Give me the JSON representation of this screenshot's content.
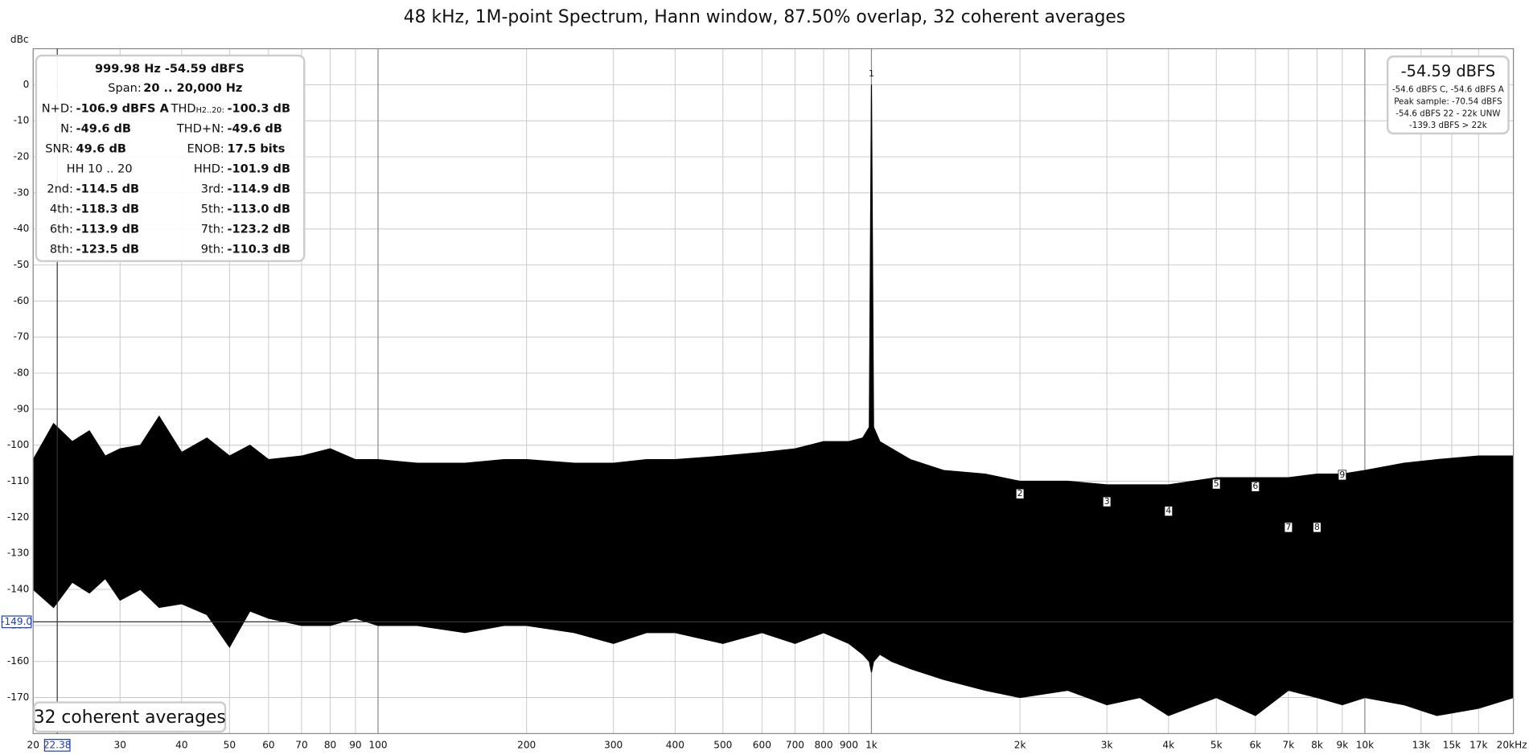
{
  "chart_data": {
    "type": "band",
    "title": "48 kHz, 1M-point Spectrum, Hann window, 87.50% overlap, 32 coherent averages",
    "y_unit": "dBc",
    "log_x": true,
    "grid": true,
    "xlim": [
      20,
      20000
    ],
    "ylim": [
      -180,
      10
    ],
    "xticks": [
      20,
      30,
      40,
      50,
      60,
      70,
      80,
      90,
      100,
      200,
      300,
      400,
      500,
      600,
      700,
      800,
      900,
      {
        "value": 1000,
        "label": "1k"
      },
      {
        "value": 2000,
        "label": "2k"
      },
      {
        "value": 3000,
        "label": "3k"
      },
      {
        "value": 4000,
        "label": "4k"
      },
      {
        "value": 5000,
        "label": "5k"
      },
      {
        "value": 6000,
        "label": "6k"
      },
      {
        "value": 7000,
        "label": "7k"
      },
      {
        "value": 8000,
        "label": "8k"
      },
      {
        "value": 9000,
        "label": "9k"
      },
      {
        "value": 10000,
        "label": "10k"
      },
      {
        "value": 13000,
        "label": "13k"
      },
      {
        "value": 15000,
        "label": "15k"
      },
      {
        "value": 17000,
        "label": "17k"
      },
      {
        "value": 20000,
        "label": "20kHz"
      }
    ],
    "yticks": [
      0,
      -10,
      -20,
      -30,
      -40,
      -50,
      -60,
      -70,
      -80,
      -90,
      -100,
      -110,
      -120,
      -130,
      -140,
      -150,
      -160,
      -170
    ],
    "x": [
      20,
      22,
      24,
      26,
      28,
      30,
      33,
      36,
      40,
      45,
      50,
      55,
      60,
      70,
      80,
      90,
      100,
      120,
      150,
      180,
      200,
      250,
      300,
      350,
      400,
      500,
      600,
      700,
      800,
      900,
      960,
      990,
      1000,
      1010,
      1040,
      1100,
      1200,
      1400,
      1700,
      2000,
      2500,
      3000,
      3500,
      4000,
      5000,
      6000,
      7000,
      8000,
      9000,
      10000,
      12000,
      14000,
      17000,
      20000
    ],
    "series": [
      {
        "color": "#000000",
        "values": [
          -104,
          -94,
          -99,
          -96,
          -103,
          -101,
          -100,
          -92,
          -102,
          -98,
          -103,
          -100,
          -104,
          -103,
          -101,
          -104,
          -104,
          -105,
          -105,
          -104,
          -104,
          -105,
          -105,
          -104,
          -104,
          -103,
          -102,
          -101,
          -99,
          -99,
          -98,
          -95,
          0,
          -95,
          -99,
          -101,
          -104,
          -107,
          -108,
          -110,
          -110,
          -111,
          -111,
          -111,
          -109,
          -109,
          -109,
          -108,
          -108,
          -107,
          -105,
          -104,
          -103,
          -103
        ]
      },
      {
        "color": "#000000",
        "values": [
          -140,
          -145,
          -138,
          -141,
          -137,
          -143,
          -140,
          -145,
          -144,
          -147,
          -156,
          -146,
          -148,
          -150,
          -150,
          -148,
          -150,
          -150,
          -152,
          -150,
          -150,
          -152,
          -155,
          -152,
          -152,
          -155,
          -152,
          -155,
          -152,
          -155,
          -158,
          -160,
          -163,
          -160,
          -158,
          -160,
          -162,
          -165,
          -168,
          -170,
          -168,
          -172,
          -170,
          -175,
          -170,
          -175,
          -168,
          -170,
          -172,
          -170,
          -172,
          -175,
          -173,
          -170
        ]
      }
    ],
    "markers": [
      {
        "label": "1",
        "x": 1000,
        "y": 3
      },
      {
        "label": "2",
        "x": 2000,
        "y": -113.5
      },
      {
        "label": "3",
        "x": 3000,
        "y": -115.7
      },
      {
        "label": "4",
        "x": 4000,
        "y": -118.3
      },
      {
        "label": "5",
        "x": 5000,
        "y": -110.8
      },
      {
        "label": "6",
        "x": 6000,
        "y": -111.5
      },
      {
        "label": "7",
        "x": 7000,
        "y": -122.8
      },
      {
        "label": "8",
        "x": 8000,
        "y": -122.8
      },
      {
        "label": "9",
        "x": 9000,
        "y": -108.3
      }
    ],
    "cursor": {
      "x": {
        "value": 22.38,
        "label": "22.38"
      },
      "y": {
        "value": -149,
        "label": "-149.0"
      }
    }
  },
  "left_readout": {
    "header": "999.98 Hz  -54.59 dBFS",
    "span_label": "Span:",
    "span_value": "20 .. 20,000 Hz",
    "rows": [
      [
        {
          "label": "N+D:",
          "value": "-106.9 dBFS A"
        },
        {
          "label": "THD",
          "sub": "H2..20:",
          "value": "-100.3 dB"
        }
      ],
      [
        {
          "label": "N:",
          "value": "-49.6 dB"
        },
        {
          "label": "THD+N:",
          "value": "-49.6 dB"
        }
      ],
      [
        {
          "label": "SNR:",
          "value": "49.6 dB"
        },
        {
          "label": "ENOB:",
          "value": "17.5 bits"
        }
      ],
      [
        {
          "label": "HH 10 .. 20"
        },
        {
          "label": "HHD:",
          "value": "-101.9 dB"
        }
      ],
      [
        {
          "label": "2nd:",
          "value": "-114.5 dB"
        },
        {
          "label": "3rd:",
          "value": "-114.9 dB"
        }
      ],
      [
        {
          "label": "4th:",
          "value": "-118.3 dB"
        },
        {
          "label": "5th:",
          "value": "-113.0 dB"
        }
      ],
      [
        {
          "label": "6th:",
          "value": "-113.9 dB"
        },
        {
          "label": "7th:",
          "value": "-123.2 dB"
        }
      ],
      [
        {
          "label": "8th:",
          "value": "-123.5 dB"
        },
        {
          "label": "9th:",
          "value": "-110.3 dB"
        }
      ]
    ]
  },
  "right_readout": {
    "main": "-54.59 dBFS",
    "lines": [
      "-54.6 dBFS C, -54.6 dBFS A",
      "Peak sample: -70.54 dBFS",
      "-54.6 dBFS 22 - 22k UNW",
      "-139.3 dBFS > 22k"
    ]
  },
  "averages_badge": "32 coherent averages"
}
